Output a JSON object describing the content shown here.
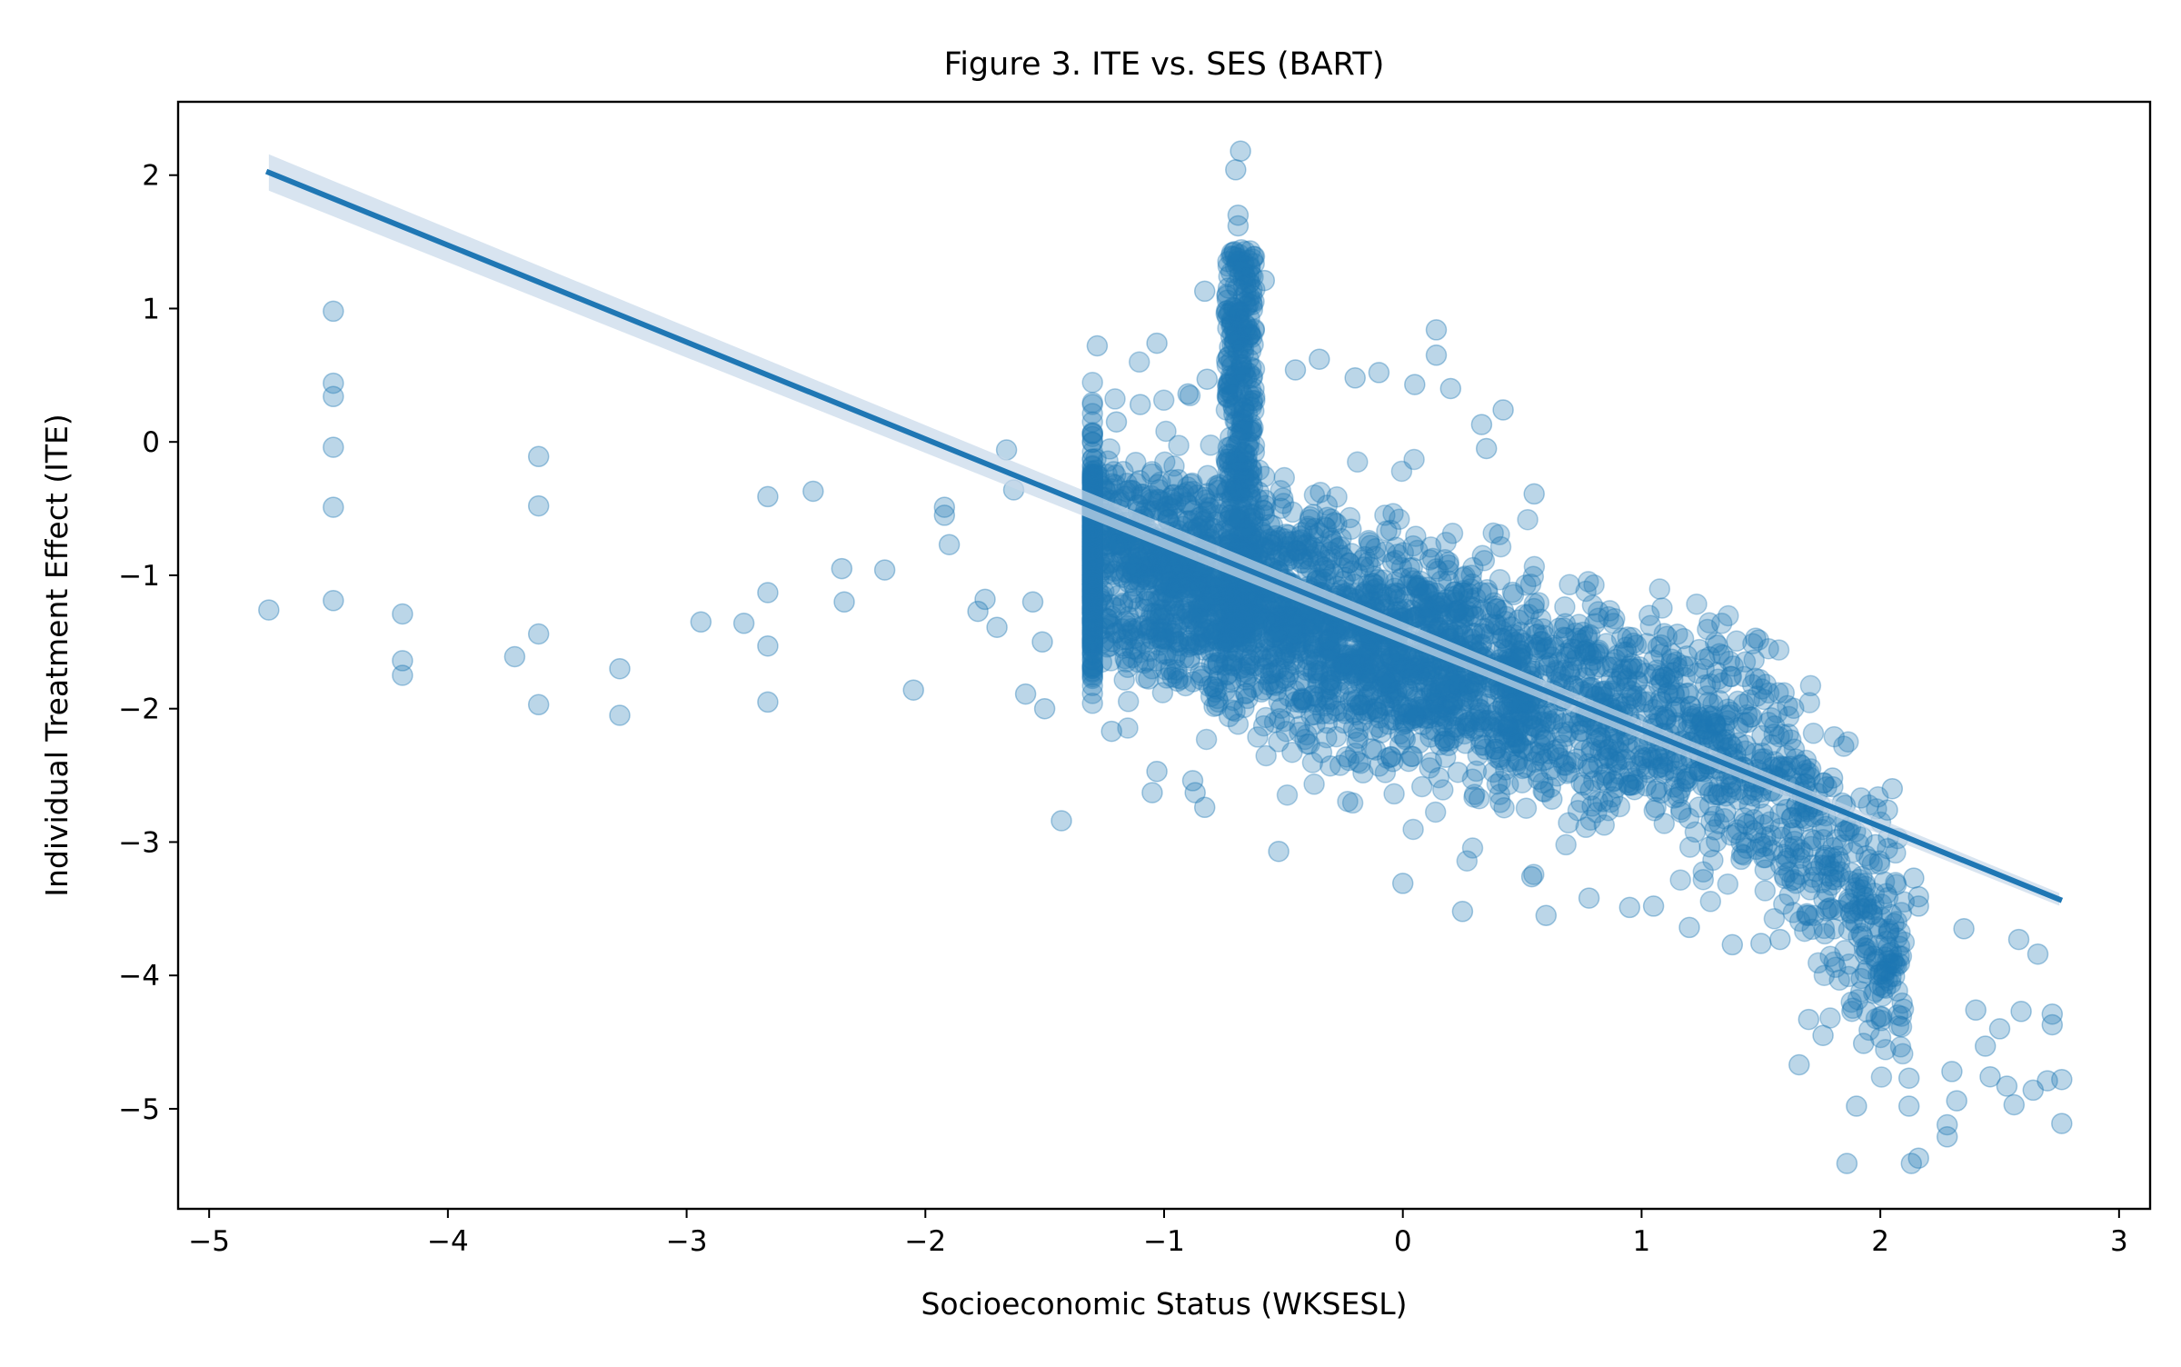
{
  "chart_data": {
    "type": "scatter",
    "title": "Figure 3. ITE vs. SES (BART)",
    "xlabel": "Socioeconomic Status (WKSESL)",
    "ylabel": "Individual Treatment Effect (ITE)",
    "xlim": [
      -5.13,
      3.13
    ],
    "ylim": [
      -5.75,
      2.55
    ],
    "xticks": [
      -5,
      -4,
      -3,
      -2,
      -1,
      0,
      1,
      2,
      3
    ],
    "yticks": [
      -5,
      -4,
      -3,
      -2,
      -1,
      0,
      1,
      2
    ],
    "xtick_labels": [
      "−5",
      "−4",
      "−3",
      "−2",
      "−1",
      "0",
      "1",
      "2",
      "3"
    ],
    "ytick_labels": [
      "−5",
      "−4",
      "−3",
      "−2",
      "−1",
      "0",
      "1",
      "2"
    ],
    "grid": false,
    "legend": "none",
    "series": [
      {
        "kind": "scatter",
        "color": "#1f77b4",
        "alpha": 0.3,
        "points": [
          [
            -4.75,
            -1.26
          ],
          [
            -4.48,
            0.98
          ],
          [
            -4.48,
            0.44
          ],
          [
            -4.48,
            0.34
          ],
          [
            -4.48,
            -0.04
          ],
          [
            -4.48,
            -0.49
          ],
          [
            -4.48,
            -1.19
          ],
          [
            -4.19,
            -1.29
          ],
          [
            -4.19,
            -1.64
          ],
          [
            -4.19,
            -1.75
          ],
          [
            -3.72,
            -1.61
          ],
          [
            -3.62,
            -0.11
          ],
          [
            -3.62,
            -0.48
          ],
          [
            -3.62,
            -1.44
          ],
          [
            -3.62,
            -1.97
          ],
          [
            -3.28,
            -1.7
          ],
          [
            -3.28,
            -2.05
          ],
          [
            -2.94,
            -1.35
          ],
          [
            -2.76,
            -1.36
          ],
          [
            -2.66,
            -0.41
          ],
          [
            -2.66,
            -1.13
          ],
          [
            -2.66,
            -1.53
          ],
          [
            -2.66,
            -1.95
          ],
          [
            -2.47,
            -0.37
          ],
          [
            -2.35,
            -0.95
          ],
          [
            -2.34,
            -1.2
          ],
          [
            -2.17,
            -0.96
          ],
          [
            -2.05,
            -1.86
          ],
          [
            -1.92,
            -0.49
          ],
          [
            -1.92,
            -0.55
          ],
          [
            -1.9,
            -0.77
          ],
          [
            -1.78,
            -1.27
          ],
          [
            -1.75,
            -1.18
          ],
          [
            -1.7,
            -1.39
          ],
          [
            -1.66,
            -0.06
          ],
          [
            -1.63,
            -0.36
          ],
          [
            -1.58,
            -1.89
          ],
          [
            -1.55,
            -1.2
          ],
          [
            -1.51,
            -1.5
          ],
          [
            -1.5,
            -2.0
          ],
          [
            -1.43,
            -2.84
          ],
          [
            -1.28,
            0.72
          ],
          [
            -1.28,
            -1.4
          ],
          [
            -1.22,
            -2.17
          ],
          [
            -1.03,
            0.74
          ],
          [
            -1.03,
            -2.47
          ],
          [
            -1.05,
            -2.63
          ],
          [
            -0.88,
            -2.54
          ],
          [
            -0.87,
            -2.63
          ],
          [
            -0.83,
            -2.74
          ],
          [
            -0.83,
            1.13
          ],
          [
            -0.68,
            2.18
          ],
          [
            -0.7,
            2.04
          ],
          [
            -0.69,
            1.7
          ],
          [
            -0.69,
            1.62
          ],
          [
            -0.58,
            1.21
          ],
          [
            -0.52,
            -3.07
          ],
          [
            -0.1,
            0.52
          ],
          [
            0.14,
            0.84
          ],
          [
            0.14,
            0.65
          ],
          [
            0.33,
            0.13
          ],
          [
            0.42,
            0.24
          ],
          [
            0.54,
            -3.26
          ],
          [
            0.6,
            -3.55
          ],
          [
            0.25,
            -3.52
          ],
          [
            0.0,
            -3.31
          ],
          [
            0.78,
            -3.42
          ],
          [
            0.95,
            -3.49
          ],
          [
            1.05,
            -3.48
          ],
          [
            1.2,
            -3.64
          ],
          [
            1.38,
            -3.77
          ],
          [
            1.5,
            -3.76
          ],
          [
            1.58,
            -3.73
          ],
          [
            1.7,
            -4.33
          ],
          [
            1.66,
            -4.67
          ],
          [
            1.76,
            -4.45
          ],
          [
            1.86,
            -5.41
          ],
          [
            1.9,
            -4.98
          ],
          [
            1.93,
            -4.51
          ],
          [
            2.08,
            -3.91
          ],
          [
            2.12,
            -4.77
          ],
          [
            2.12,
            -4.98
          ],
          [
            2.13,
            -5.41
          ],
          [
            2.16,
            -5.37
          ],
          [
            2.28,
            -5.12
          ],
          [
            2.28,
            -5.21
          ],
          [
            2.3,
            -4.72
          ],
          [
            2.32,
            -4.94
          ],
          [
            2.35,
            -3.65
          ],
          [
            2.4,
            -4.26
          ],
          [
            2.44,
            -4.53
          ],
          [
            2.46,
            -4.76
          ],
          [
            2.5,
            -4.4
          ],
          [
            2.53,
            -4.83
          ],
          [
            2.56,
            -4.97
          ],
          [
            2.58,
            -3.73
          ],
          [
            2.59,
            -4.27
          ],
          [
            2.64,
            -4.86
          ],
          [
            2.66,
            -3.84
          ],
          [
            2.7,
            -4.79
          ],
          [
            2.72,
            -4.29
          ],
          [
            2.72,
            -4.37
          ],
          [
            2.76,
            -4.78
          ],
          [
            2.76,
            -5.11
          ],
          [
            2.03,
            -2.76
          ],
          [
            2.05,
            -2.6
          ],
          [
            2.16,
            -3.41
          ],
          [
            2.16,
            -3.48
          ],
          [
            2.14,
            -3.27
          ],
          [
            1.8,
            -2.52
          ],
          [
            1.85,
            -2.92
          ],
          [
            1.98,
            -3.02
          ],
          [
            -0.74,
            0.96
          ],
          [
            -0.73,
            0.64
          ],
          [
            -0.82,
            0.47
          ],
          [
            -0.9,
            0.36
          ],
          [
            -1.1,
            0.28
          ],
          [
            -1.2,
            0.15
          ],
          [
            -1.3,
            0.07
          ],
          [
            -0.35,
            0.62
          ],
          [
            -0.45,
            0.54
          ],
          [
            -0.2,
            0.48
          ],
          [
            0.05,
            0.43
          ],
          [
            0.2,
            0.4
          ],
          [
            0.35,
            -0.05
          ],
          [
            0.55,
            -0.39
          ]
        ]
      },
      {
        "kind": "dense_cloud",
        "color": "#1f77b4",
        "alpha": 0.3,
        "count": 4200,
        "x_range": [
          -1.3,
          2.1
        ],
        "trend": {
          "intercept": -1.55,
          "slope": -0.55
        },
        "spread_sd": 0.42,
        "spike": {
          "x_center": -0.68,
          "x_width": 0.06,
          "y_range": [
            -1.5,
            1.45
          ]
        }
      },
      {
        "kind": "regression_line",
        "color": "#1f77b4",
        "x": [
          -4.75,
          2.75
        ],
        "y": [
          2.02,
          -3.43
        ],
        "ci_color": "#c7d9ea"
      }
    ]
  }
}
